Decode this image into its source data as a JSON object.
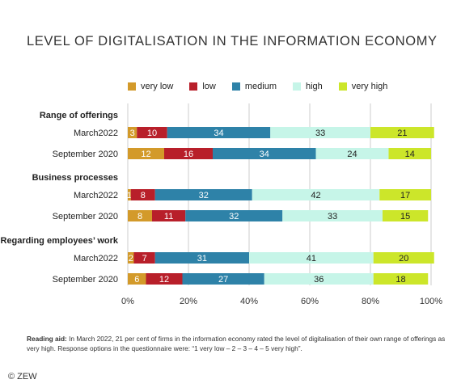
{
  "title": "LEVEL OF DIGITALISATION IN THE INFORMATION ECONOMY",
  "colors": {
    "very_low": "#d39a2a",
    "low": "#b81f2a",
    "medium": "#2e82a8",
    "high": "#c6f5e8",
    "very_high": "#cce62a",
    "grid": "#cccccc"
  },
  "chart_data": {
    "type": "bar",
    "orientation": "horizontal-stacked",
    "xlim": [
      0,
      100
    ],
    "xticks": [
      "0%",
      "20%",
      "40%",
      "60%",
      "80%",
      "100%"
    ],
    "legend": [
      "very low",
      "low",
      "medium",
      "high",
      "very high"
    ],
    "legend_position": "top",
    "grid": true,
    "groups": [
      {
        "label": "Range of offerings",
        "rows": [
          {
            "label": "March2022",
            "values": [
              3,
              10,
              34,
              33,
              21
            ]
          },
          {
            "label": "September 2020",
            "values": [
              12,
              16,
              34,
              24,
              14
            ]
          }
        ]
      },
      {
        "label": "Business processes",
        "rows": [
          {
            "label": "March2022",
            "values": [
              1,
              8,
              32,
              42,
              17
            ]
          },
          {
            "label": "September 2020",
            "values": [
              8,
              11,
              32,
              33,
              15
            ]
          }
        ]
      },
      {
        "label": "Regarding employees’ work",
        "rows": [
          {
            "label": "March2022",
            "values": [
              2,
              7,
              31,
              41,
              20
            ]
          },
          {
            "label": "September 2020",
            "values": [
              6,
              12,
              27,
              36,
              18
            ]
          }
        ]
      }
    ]
  },
  "reading_aid": {
    "label": "Reading aid:",
    "text": " In March 2022, 21 per cent of firms in the information economy rated the level of digitalisation of their own range of offerings as very high. Response options in the questionnaire were: “1 very low – 2 – 3 – 4 – 5 very high”."
  },
  "copyright": "© ZEW"
}
